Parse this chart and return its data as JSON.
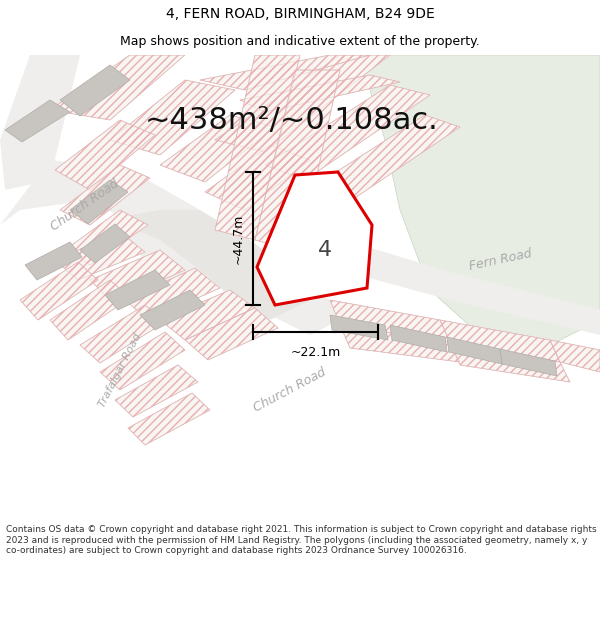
{
  "title_line1": "4, FERN ROAD, BIRMINGHAM, B24 9DE",
  "title_line2": "Map shows position and indicative extent of the property.",
  "area_text": "~438m²/~0.108ac.",
  "dim_height": "~44.7m",
  "dim_width": "~22.1m",
  "property_number": "4",
  "footer_text": "Contains OS data © Crown copyright and database right 2021. This information is subject to Crown copyright and database rights 2023 and is reproduced with the permission of HM Land Registry. The polygons (including the associated geometry, namely x, y co-ordinates) are subject to Crown copyright and database rights 2023 Ordnance Survey 100026316.",
  "bg_color": "#ffffff",
  "map_bg": "#ffffff",
  "green_color": "#e8ede4",
  "road_color": "#e8e8e8",
  "parcel_bg": "#f2f0ee",
  "parcel_edge": "#d8b8b8",
  "hatch_color": "#e8c0c0",
  "building_color": "#d0ccc8",
  "property_outline_color": "#dd0000",
  "property_fill": "#ffffff",
  "dim_line_color": "#000000",
  "road_label_color": "#aaaaaa",
  "title_color": "#000000",
  "footer_color": "#333333",
  "title_fontsize": 10,
  "subtitle_fontsize": 9,
  "area_fontsize": 22,
  "footer_fontsize": 6.5
}
